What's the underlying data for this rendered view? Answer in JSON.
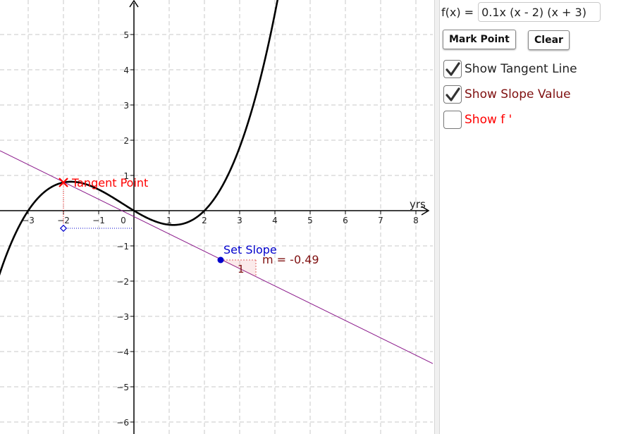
{
  "formula": {
    "label": "f(x) =",
    "value": "0.1x (x - 2) (x + 3)"
  },
  "buttons": {
    "mark_point": "Mark Point",
    "clear": "Clear"
  },
  "checkboxes": [
    {
      "label": "Show Tangent Line",
      "checked": true,
      "color": "#222222"
    },
    {
      "label": "Show Slope Value",
      "checked": true,
      "color": "#7f1010"
    },
    {
      "label": "Show f '",
      "checked": false,
      "color": "#ff0000"
    }
  ],
  "graph": {
    "x_axis_label": "yrs",
    "x_ticks": [
      "−3",
      "−2",
      "−1",
      "0",
      "1",
      "2",
      "3",
      "4",
      "5",
      "6",
      "7",
      "8"
    ],
    "y_ticks": [
      "5",
      "4",
      "3",
      "2",
      "1",
      "−1",
      "−2",
      "−3",
      "−4",
      "−5",
      "−6"
    ],
    "tangent_point_label": "Tangent Point",
    "set_slope_label": "Set Slope",
    "slope_value_label": "m = -0.49",
    "slope_triangle_run": "1",
    "curve_color": "#000000",
    "tangent_color": "#8b1a8b",
    "tangent_point_color": "#ff0000",
    "set_slope_color": "#0000cc",
    "slope_text_color": "#7f1010"
  }
}
